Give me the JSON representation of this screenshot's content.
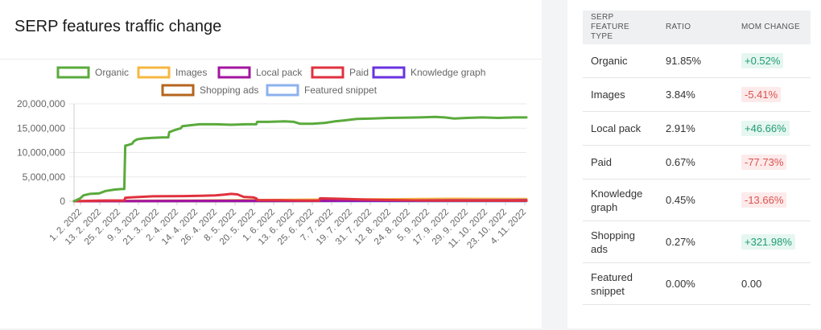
{
  "page": {
    "title": "SERP features traffic change"
  },
  "colors": {
    "organic": "#5aaa3c",
    "images": "#f5b842",
    "local_pack": "#a3159f",
    "paid": "#e0313d",
    "knowledge_graph": "#6a33e0",
    "shopping_ads": "#b5651d",
    "featured_snippet": "#8cb1ee",
    "positive": "#1f9d72",
    "negative": "#d9534f"
  },
  "chart_data": {
    "type": "line",
    "title": "SERP features traffic change",
    "legend_position": "top",
    "grid": true,
    "ylim": [
      0,
      20000000
    ],
    "y_ticks": [
      "20,000,000",
      "15,000,000",
      "10,000,000",
      "5,000,000",
      "0"
    ],
    "x_ticks": [
      "1. 2. 2022",
      "13. 2. 2022",
      "25. 2. 2022",
      "9. 3. 2022",
      "21. 3. 2022",
      "2. 4. 2022",
      "14. 4. 2022",
      "26. 4. 2022",
      "8. 5. 2022",
      "20. 5. 2022",
      "1. 6. 2022",
      "13. 6. 2022",
      "25. 6. 2022",
      "7. 7. 2022",
      "19. 7. 2022",
      "31. 7. 2022",
      "12. 8. 2022",
      "24. 8. 2022",
      "5. 9. 2022",
      "17. 9. 2022",
      "29. 9. 2022",
      "11. 10. 2022",
      "23. 10. 2022",
      "4. 11. 2022"
    ],
    "series": [
      {
        "name": "Organic",
        "color": "#5aaa3c",
        "points": [
          [
            0,
            0
          ],
          [
            2,
            600000
          ],
          [
            3,
            1200000
          ],
          [
            5,
            1500000
          ],
          [
            8,
            1600000
          ],
          [
            10,
            2100000
          ],
          [
            13,
            2400000
          ],
          [
            15,
            2500000
          ],
          [
            16,
            2500000
          ],
          [
            16.3,
            11400000
          ],
          [
            17,
            11500000
          ],
          [
            18.5,
            11800000
          ],
          [
            19,
            12300000
          ],
          [
            20,
            12700000
          ],
          [
            22,
            12900000
          ],
          [
            25,
            13000000
          ],
          [
            28,
            13100000
          ],
          [
            30,
            13100000
          ],
          [
            30.3,
            14200000
          ],
          [
            32,
            14600000
          ],
          [
            34,
            15000000
          ],
          [
            34.5,
            15400000
          ],
          [
            37,
            15600000
          ],
          [
            40,
            15800000
          ],
          [
            45,
            15800000
          ],
          [
            50,
            15700000
          ],
          [
            55,
            15800000
          ],
          [
            58,
            15800000
          ],
          [
            58.3,
            16300000
          ],
          [
            62,
            16300000
          ],
          [
            67,
            16400000
          ],
          [
            70,
            16300000
          ],
          [
            72,
            15900000
          ],
          [
            76,
            15900000
          ],
          [
            80,
            16100000
          ],
          [
            83,
            16400000
          ],
          [
            86,
            16600000
          ],
          [
            90,
            16900000
          ],
          [
            95,
            17000000
          ],
          [
            100,
            17100000
          ],
          [
            110,
            17200000
          ],
          [
            115,
            17300000
          ],
          [
            118,
            17200000
          ],
          [
            121,
            17000000
          ],
          [
            125,
            17100000
          ],
          [
            130,
            17200000
          ],
          [
            135,
            17100000
          ],
          [
            140,
            17200000
          ],
          [
            144,
            17200000
          ]
        ]
      },
      {
        "name": "Images",
        "color": "#f5b842",
        "points": [
          [
            0,
            0
          ],
          [
            20,
            100000
          ],
          [
            40,
            150000
          ],
          [
            60,
            250000
          ],
          [
            80,
            350000
          ],
          [
            100,
            400000
          ],
          [
            120,
            500000
          ],
          [
            144,
            450000
          ]
        ]
      },
      {
        "name": "Local pack",
        "color": "#a3159f",
        "points": [
          [
            0,
            0
          ],
          [
            20,
            50000
          ],
          [
            40,
            80000
          ],
          [
            60,
            100000
          ],
          [
            80,
            120000
          ],
          [
            100,
            150000
          ],
          [
            120,
            180000
          ],
          [
            144,
            200000
          ]
        ]
      },
      {
        "name": "Paid",
        "color": "#e0313d",
        "points": [
          [
            0,
            0
          ],
          [
            10,
            150000
          ],
          [
            16,
            150000
          ],
          [
            16.3,
            700000
          ],
          [
            18,
            800000
          ],
          [
            25,
            1000000
          ],
          [
            35,
            1050000
          ],
          [
            40,
            1100000
          ],
          [
            45,
            1200000
          ],
          [
            48,
            1350000
          ],
          [
            50,
            1500000
          ],
          [
            52,
            1400000
          ],
          [
            54,
            900000
          ],
          [
            57,
            800000
          ],
          [
            58,
            600000
          ],
          [
            58.5,
            200000
          ],
          [
            65,
            200000
          ],
          [
            70,
            150000
          ],
          [
            78,
            100000
          ],
          [
            78.3,
            600000
          ],
          [
            85,
            500000
          ],
          [
            92,
            350000
          ],
          [
            100,
            250000
          ],
          [
            110,
            150000
          ],
          [
            120,
            120000
          ],
          [
            144,
            100000
          ]
        ]
      },
      {
        "name": "Knowledge graph",
        "color": "#6a33e0",
        "points": [
          [
            0,
            0
          ],
          [
            20,
            40000
          ],
          [
            40,
            50000
          ],
          [
            60,
            60000
          ],
          [
            80,
            80000
          ],
          [
            100,
            90000
          ],
          [
            120,
            100000
          ],
          [
            144,
            100000
          ]
        ]
      },
      {
        "name": "Shopping ads",
        "color": "#b5651d",
        "points": [
          [
            0,
            0
          ],
          [
            40,
            20000
          ],
          [
            80,
            60000
          ],
          [
            100,
            120000
          ],
          [
            120,
            200000
          ],
          [
            144,
            250000
          ]
        ]
      },
      {
        "name": "Featured snippet",
        "color": "#8cb1ee",
        "points": [
          [
            0,
            0
          ],
          [
            144,
            0
          ]
        ]
      }
    ]
  },
  "table": {
    "headers": [
      "SERP FEATURE TYPE",
      "RATIO",
      "MOM CHANGE"
    ],
    "rows": [
      {
        "type": "Organic",
        "ratio": "91.85%",
        "change": "+0.52%",
        "trend": "pos"
      },
      {
        "type": "Images",
        "ratio": "3.84%",
        "change": "-5.41%",
        "trend": "neg"
      },
      {
        "type": "Local pack",
        "ratio": "2.91%",
        "change": "+46.66%",
        "trend": "pos"
      },
      {
        "type": "Paid",
        "ratio": "0.67%",
        "change": "-77.73%",
        "trend": "neg"
      },
      {
        "type": "Knowledge graph",
        "ratio": "0.45%",
        "change": "-13.66%",
        "trend": "neg"
      },
      {
        "type": "Shopping ads",
        "ratio": "0.27%",
        "change": "+321.98%",
        "trend": "pos"
      },
      {
        "type": "Featured snippet",
        "ratio": "0.00%",
        "change": "0.00",
        "trend": "neutral"
      }
    ]
  }
}
